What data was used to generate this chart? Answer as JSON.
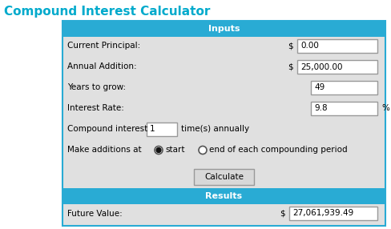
{
  "title": "Compound Interest Calculator",
  "title_color": "#00AACC",
  "title_fontsize": 11,
  "bg_color": "#E0E0E0",
  "outer_bg": "#FFFFFF",
  "header_color": "#29ABD4",
  "header_text_color": "#FFFFFF",
  "header_fontsize": 8,
  "table_border_color": "#29ABD4",
  "field_bg": "#FFFFFF",
  "field_border": "#999999",
  "label_color": "#000000",
  "label_fontsize": 7.5,
  "inputs_header": "Inputs",
  "results_header": "Results",
  "fields": [
    {
      "label": "Current Principal:",
      "dollar": true,
      "value": "0.00",
      "has_percent": false
    },
    {
      "label": "Annual Addition:",
      "dollar": true,
      "value": "25,000.00",
      "has_percent": false
    },
    {
      "label": "Years to grow:",
      "dollar": false,
      "value": "49",
      "has_percent": false
    },
    {
      "label": "Interest Rate:",
      "dollar": false,
      "value": "9.8",
      "has_percent": true
    }
  ],
  "compound_label": "Compound interest",
  "compound_value": "1",
  "compound_suffix": "time(s) annually",
  "additions_label": "Make additions at",
  "additions_option1": "start",
  "additions_option2": "end of each compounding period",
  "button_label": "Calculate",
  "result_label": "Future Value:",
  "result_value": "27,061,939.49",
  "fig_width": 4.89,
  "fig_height": 2.86,
  "dpi": 100
}
